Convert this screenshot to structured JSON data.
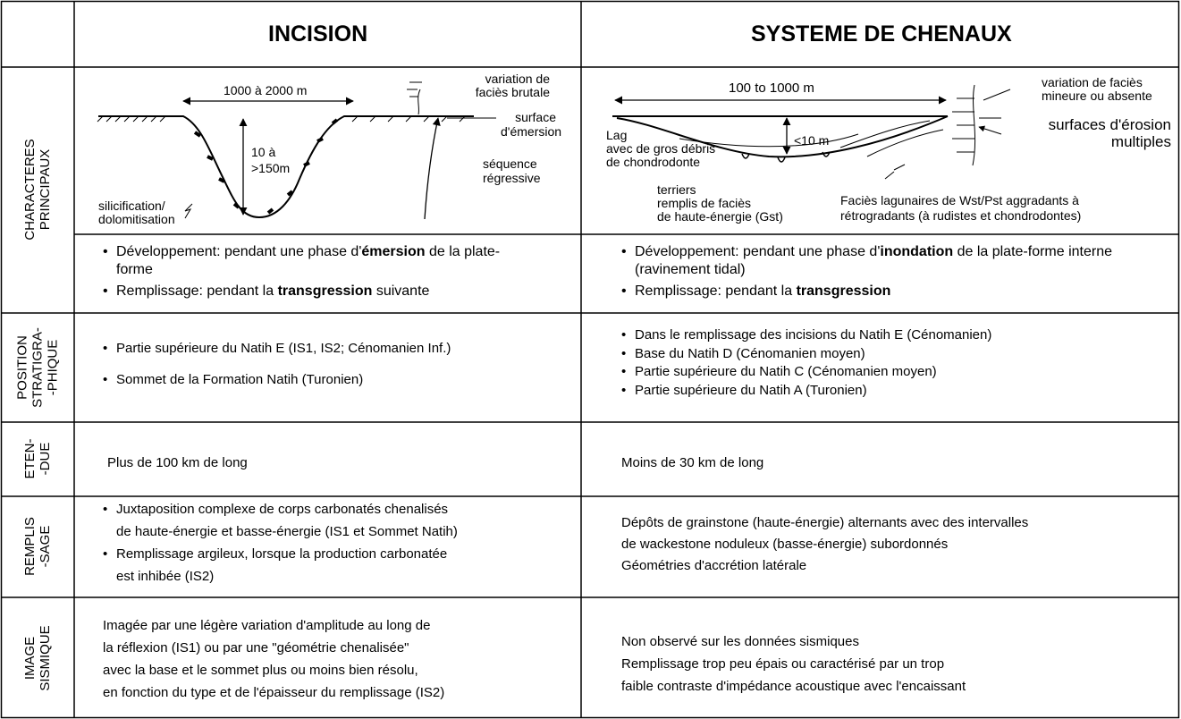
{
  "header": {
    "incision": "INCISION",
    "chenaux": "SYSTEME DE CHENAUX"
  },
  "row_labels": [
    [
      "CHARACTERES",
      "PRINCIPAUX"
    ],
    [
      "POSITION",
      "STRATIGRA-",
      "-PHIQUE"
    ],
    [
      "ETEN-",
      "-DUE"
    ],
    [
      "REMPLIS",
      "-SAGE"
    ],
    [
      "IMAGE",
      "SISMIQUE"
    ]
  ],
  "diagram_incision": {
    "width": "1000 à 2000 m",
    "depth": [
      "10 à",
      ">150m"
    ],
    "variation": [
      "variation de",
      "faciès brutale"
    ],
    "surface": [
      "surface",
      "d'émersion"
    ],
    "sequence": [
      "séquence",
      "régressive"
    ],
    "silicification": [
      "silicification/",
      "dolomitisation"
    ]
  },
  "diagram_chenaux": {
    "width": "100 to 1000 m",
    "depth": "<10 m",
    "variation": [
      "variation de faciès",
      "mineure ou absente"
    ],
    "surfaces": [
      "surfaces d'érosion",
      "multiples"
    ],
    "lag": [
      "Lag",
      "avec de gros débris",
      "de chondrodonte"
    ],
    "terriers": [
      "terriers",
      "remplis de faciès",
      "de haute-énergie (Gst)"
    ],
    "facies": [
      "Faciès lagunaires de Wst/Pst aggradants à",
      "rétrogradants (à rudistes et chondrodontes)"
    ]
  },
  "principaux": {
    "incision": [
      [
        "Développement: pendant une phase d'",
        "émersion",
        " de la plate-forme"
      ],
      [
        "Remplissage: pendant la ",
        "transgression",
        " suivante"
      ]
    ],
    "chenaux": [
      [
        "Développement: pendant une phase d'",
        "inondation",
        " de la plate-forme interne (ravinement tidal)"
      ],
      [
        "Remplissage: pendant la ",
        "transgression"
      ]
    ]
  },
  "position": {
    "incision": [
      "Partie supérieure du Natih E (IS1, IS2; Cénomanien Inf.)",
      "Sommet de la Formation Natih (Turonien)"
    ],
    "chenaux": [
      "Dans le remplissage des incisions du Natih E (Cénomanien)",
      "Base du Natih D (Cénomanien moyen)",
      "Partie supérieure du Natih C (Cénomanien moyen)",
      "Partie supérieure du Natih A (Turonien)"
    ]
  },
  "etendue": {
    "incision": "Plus de 100 km de long",
    "chenaux": "Moins de 30 km de long"
  },
  "remplissage": {
    "incision": [
      [
        "Juxtaposition complexe de corps carbonatés chenalisés",
        "de haute-énergie et basse-énergie (IS1 et Sommet Natih)"
      ],
      [
        "Remplissage argileux, lorsque la production carbonatée",
        "est inhibée (IS2)"
      ]
    ],
    "chenaux": [
      "Dépôts de grainstone (haute-énergie) alternants avec des intervalles",
      "de wackestone noduleux (basse-énergie) subordonnés",
      "Géométries d'accrétion latérale"
    ]
  },
  "image": {
    "incision": [
      "Imagée par une légère variation d'amplitude au long de",
      "la réflexion (IS1) ou par une \"géométrie chenalisée\"",
      "avec la base et le sommet plus ou moins bien résolu,",
      "en fonction du type et de l'épaisseur du remplissage (IS2)"
    ],
    "chenaux": [
      "Non observé sur les données sismiques",
      "Remplissage trop peu épais ou caractérisé par un trop",
      "faible contraste d'impédance acoustique avec l'encaissant"
    ]
  }
}
